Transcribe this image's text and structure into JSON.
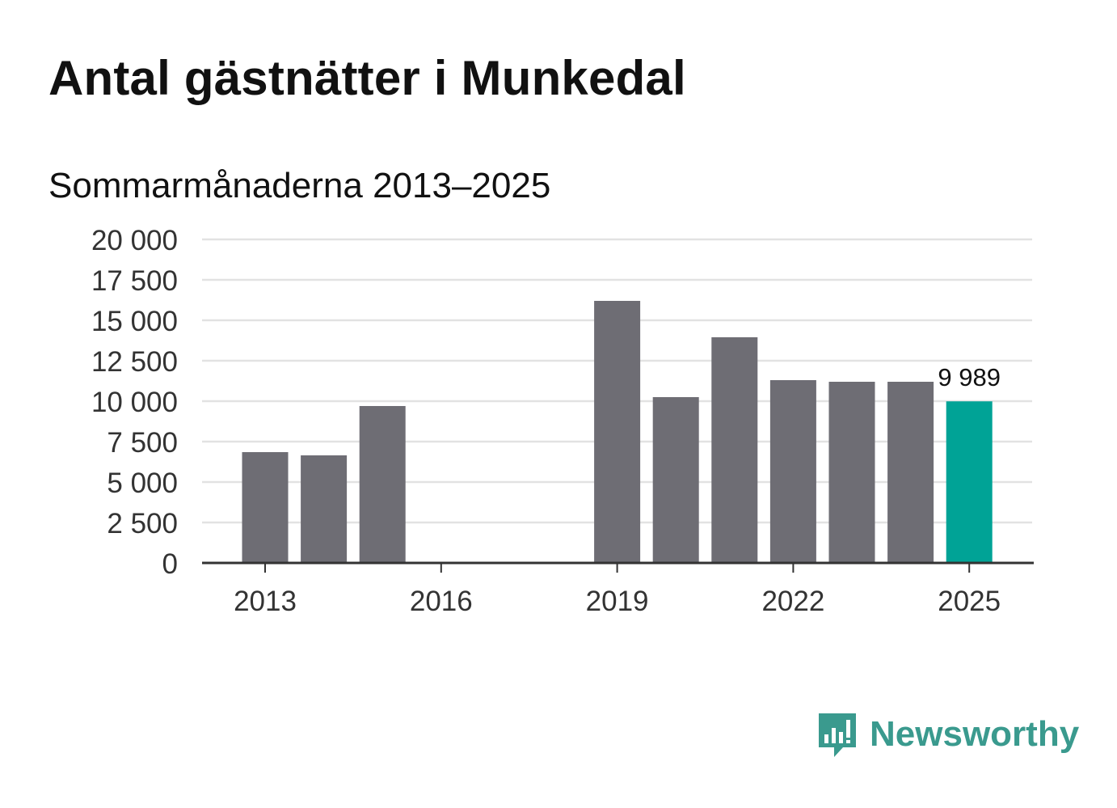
{
  "title": "Antal gästnätter i Munkedal",
  "subtitle": "Sommarmånaderna 2013–2025",
  "brand": {
    "name": "Newsworthy",
    "icon": "newsworthy-logo-icon",
    "color": "#3a9a8e"
  },
  "colors": {
    "bar": "#6e6d74",
    "highlight": "#00a396",
    "grid": "#e2e2e2",
    "axis": "#333333",
    "text": "#333333"
  },
  "chart_data": {
    "type": "bar",
    "x": [
      2013,
      2014,
      2015,
      2016,
      2017,
      2018,
      2019,
      2020,
      2021,
      2022,
      2023,
      2024,
      2025
    ],
    "values": [
      6850,
      6650,
      9700,
      null,
      null,
      null,
      16200,
      10250,
      13950,
      11300,
      11200,
      11200,
      9989
    ],
    "highlight": 2025,
    "data_label": {
      "x": 2025,
      "text": "9 989"
    },
    "ylim": [
      0,
      20000
    ],
    "yticks": [
      0,
      2500,
      5000,
      7500,
      10000,
      12500,
      15000,
      17500,
      20000
    ],
    "ytick_labels": [
      "0",
      "2 500",
      "5 000",
      "7 500",
      "10 000",
      "12 500",
      "15 000",
      "17 500",
      "20 000"
    ],
    "xticks": [
      2013,
      2016,
      2019,
      2022,
      2025
    ],
    "xtick_labels": [
      "2013",
      "2016",
      "2019",
      "2022",
      "2025"
    ],
    "grid": true,
    "xlabel": "",
    "ylabel": ""
  }
}
